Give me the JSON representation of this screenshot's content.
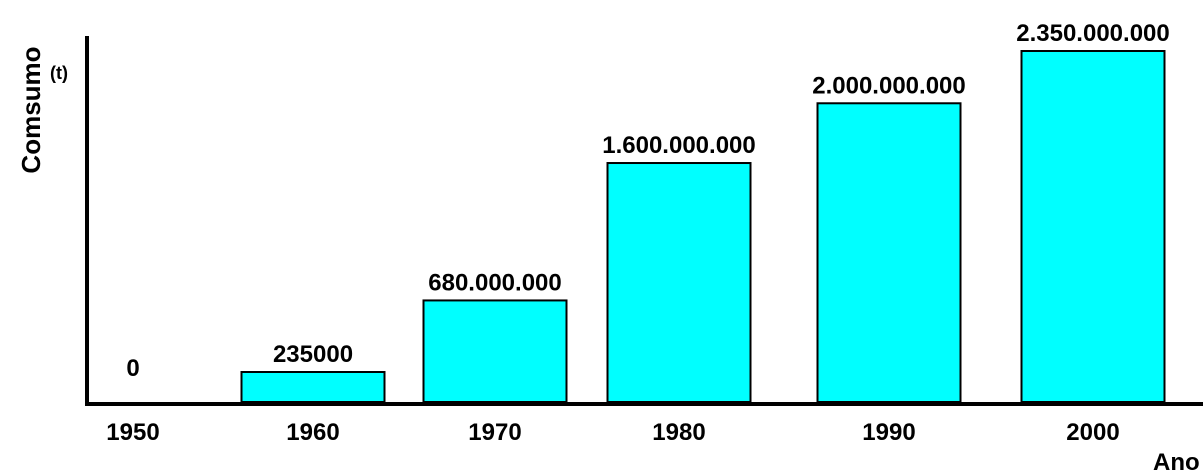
{
  "chart_data": {
    "type": "bar",
    "title": "",
    "ylabel": "Comsumo",
    "yunit": "(t)",
    "xlabel": "Ano",
    "categories": [
      "1950",
      "1960",
      "1970",
      "1980",
      "1990",
      "2000"
    ],
    "values": [
      0,
      235000,
      680000000,
      1600000000,
      2000000000,
      2350000000
    ],
    "value_labels": [
      "0",
      "235000",
      "680.000.000",
      "1.600.000.000",
      "2.000.000.000",
      "2.350.000.000"
    ],
    "ylim": [
      0,
      2350000000
    ],
    "grid": false,
    "legend": "none",
    "colors": {
      "bar": "#00ffff",
      "bar_edge": "#000000",
      "axis": "#000000"
    }
  }
}
